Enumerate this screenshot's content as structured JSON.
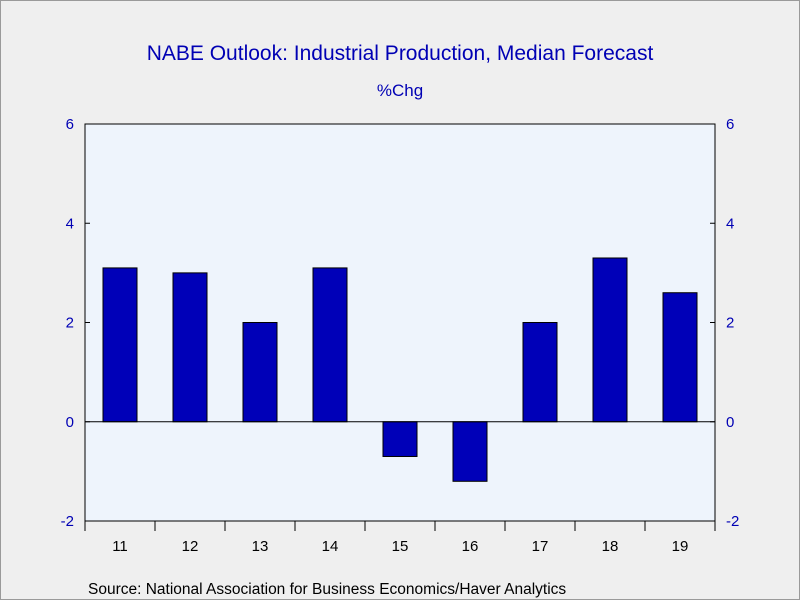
{
  "chart_data": {
    "type": "bar",
    "title": "NABE Outlook: Industrial Production, Median Forecast",
    "subtitle": "%Chg",
    "categories": [
      "11",
      "12",
      "13",
      "14",
      "15",
      "16",
      "17",
      "18",
      "19"
    ],
    "values": [
      3.1,
      3.0,
      2.0,
      3.1,
      -0.7,
      -1.2,
      2.0,
      3.3,
      2.6
    ],
    "ylim": [
      -2,
      6
    ],
    "yticks": [
      "-2",
      "0",
      "2",
      "4",
      "6"
    ],
    "y_axes": "left and right",
    "grid": false,
    "legend": "none",
    "source": "Source:  National Association for Business Economics/Haver Analytics"
  },
  "colors": {
    "bar_fill": "#0000b8",
    "bar_stroke": "#000000",
    "plot_background": "#eef4fc",
    "page_background": "#efefef",
    "title": "#0000b4",
    "axis": "#000000"
  }
}
